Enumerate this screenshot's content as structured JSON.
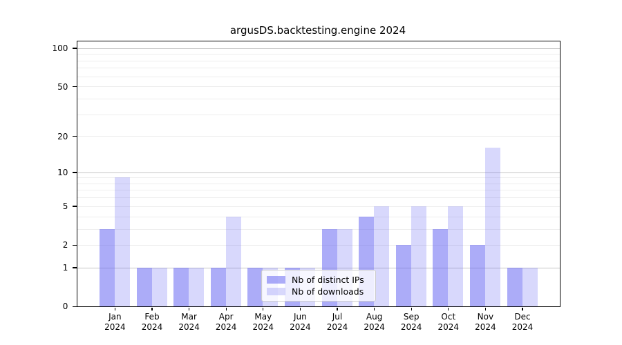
{
  "chart_data": {
    "type": "bar",
    "title": "argusDS.backtesting.engine 2024",
    "categories": [
      "Jan 2024",
      "Feb 2024",
      "Mar 2024",
      "Apr 2024",
      "May 2024",
      "Jun 2024",
      "Jul 2024",
      "Aug 2024",
      "Sep 2024",
      "Oct 2024",
      "Nov 2024",
      "Dec 2024"
    ],
    "series": [
      {
        "name": "Nb of distinct IPs",
        "values": [
          3,
          1,
          1,
          1,
          1,
          1,
          3,
          4,
          2,
          3,
          2,
          1
        ],
        "fill": "rgba(95,95,242,0.52)",
        "approx_hex": "#a9a9f4"
      },
      {
        "name": "Nb of downloads",
        "values": [
          9,
          1,
          1,
          4,
          1,
          1,
          3,
          5,
          5,
          5,
          16,
          1
        ],
        "fill": "rgba(95,95,242,0.245)",
        "approx_hex": "#d9d9f8"
      }
    ],
    "yscale": "log10(1+x)",
    "ylim": [
      0,
      113
    ],
    "y_ticks": [
      0,
      1,
      2,
      5,
      10,
      20,
      50,
      100
    ],
    "y_major_gridlines": [
      1,
      10,
      100
    ],
    "y_minor_gridlines": [
      2,
      3,
      4,
      5,
      6,
      7,
      8,
      9,
      20,
      30,
      40,
      50,
      60,
      70,
      80,
      90
    ],
    "grid": true,
    "legend_position": "lower center",
    "colors": {
      "grid_major": "#c4c4c4",
      "grid_minor": "#ededed",
      "axis": "#000000",
      "legend_border": "#cccccc"
    }
  }
}
